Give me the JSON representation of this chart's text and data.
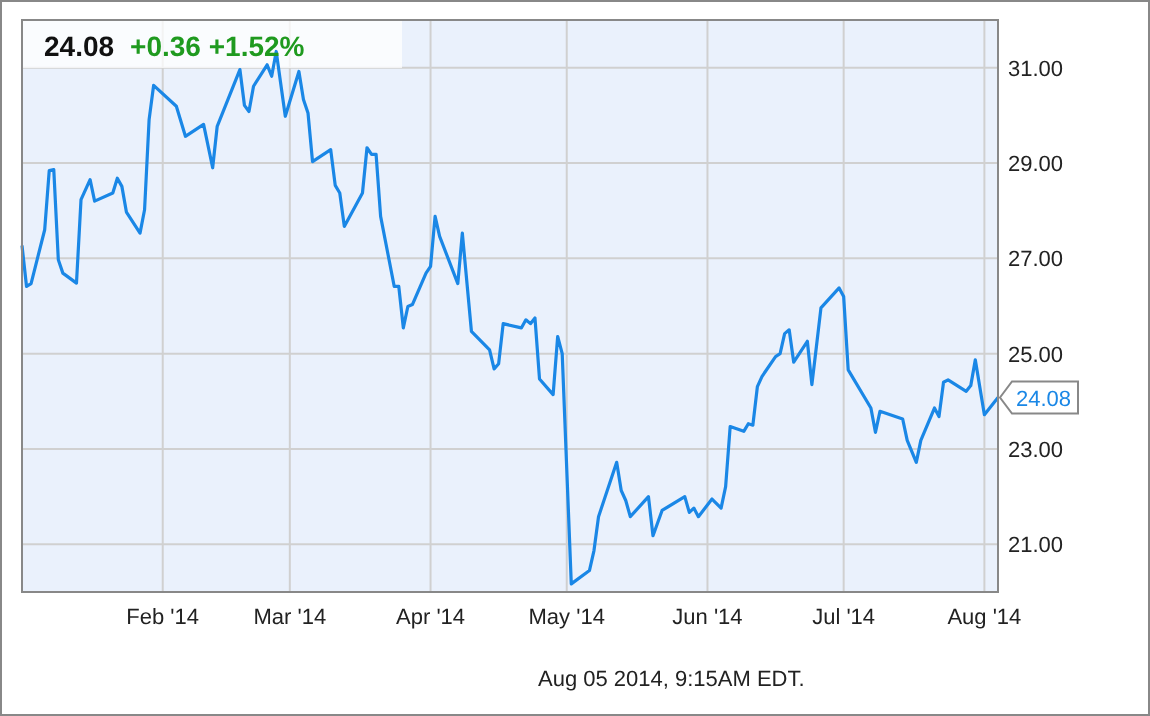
{
  "chart_data": {
    "type": "line",
    "title": "24.08",
    "subtitle": "+0.36 +1.52%",
    "annotations": [
      {
        "text": "24.08",
        "x": "2014-08-04",
        "y": 24.08
      },
      "Aug 05 2014, 9:15AM EDT."
    ],
    "xlim": [
      "2014-01-01",
      "2014-08-04"
    ],
    "xticks": [
      {
        "value": "2014-02-01",
        "label": "Feb '14"
      },
      {
        "value": "2014-03-01",
        "label": "Mar '14"
      },
      {
        "value": "2014-04-01",
        "label": "Apr '14"
      },
      {
        "value": "2014-05-01",
        "label": "May '14"
      },
      {
        "value": "2014-06-01",
        "label": "Jun '14"
      },
      {
        "value": "2014-07-01",
        "label": "Jul '14"
      },
      {
        "value": "2014-08-01",
        "label": "Aug '14"
      }
    ],
    "ylim": [
      20,
      32
    ],
    "yticks": [
      {
        "value": 21,
        "label": "21.00"
      },
      {
        "value": 23,
        "label": "23.00"
      },
      {
        "value": 25,
        "label": "25.00"
      },
      {
        "value": 27,
        "label": "27.00"
      },
      {
        "value": 29,
        "label": "29.00"
      },
      {
        "value": 31,
        "label": "31.00"
      }
    ],
    "grid": true,
    "marker": "none",
    "line_style": "solid",
    "x": [
      "2014-01-01",
      "2014-01-02",
      "2014-01-03",
      "2014-01-06",
      "2014-01-07",
      "2014-01-08",
      "2014-01-09",
      "2014-01-10",
      "2014-01-13",
      "2014-01-14",
      "2014-01-16",
      "2014-01-17",
      "2014-01-21",
      "2014-01-22",
      "2014-01-23",
      "2014-01-24",
      "2014-01-27",
      "2014-01-28",
      "2014-01-29",
      "2014-01-30",
      "2014-02-04",
      "2014-02-06",
      "2014-02-10",
      "2014-02-12",
      "2014-02-13",
      "2014-02-18",
      "2014-02-19",
      "2014-02-20",
      "2014-02-21",
      "2014-02-24",
      "2014-02-25",
      "2014-02-26",
      "2014-02-28",
      "2014-03-03",
      "2014-03-04",
      "2014-03-05",
      "2014-03-06",
      "2014-03-10",
      "2014-03-11",
      "2014-03-12",
      "2014-03-13",
      "2014-03-17",
      "2014-03-18",
      "2014-03-19",
      "2014-03-20",
      "2014-03-21",
      "2014-03-24",
      "2014-03-25",
      "2014-03-26",
      "2014-03-27",
      "2014-03-28",
      "2014-03-31",
      "2014-04-01",
      "2014-04-02",
      "2014-04-03",
      "2014-04-07",
      "2014-04-08",
      "2014-04-10",
      "2014-04-14",
      "2014-04-15",
      "2014-04-16",
      "2014-04-17",
      "2014-04-21",
      "2014-04-22",
      "2014-04-23",
      "2014-04-24",
      "2014-04-25",
      "2014-04-28",
      "2014-04-29",
      "2014-04-30",
      "2014-05-02",
      "2014-05-06",
      "2014-05-07",
      "2014-05-08",
      "2014-05-12",
      "2014-05-13",
      "2014-05-14",
      "2014-05-15",
      "2014-05-19",
      "2014-05-20",
      "2014-05-22",
      "2014-05-27",
      "2014-05-28",
      "2014-05-29",
      "2014-05-30",
      "2014-06-02",
      "2014-06-04",
      "2014-06-05",
      "2014-06-06",
      "2014-06-09",
      "2014-06-10",
      "2014-06-11",
      "2014-06-12",
      "2014-06-13",
      "2014-06-16",
      "2014-06-17",
      "2014-06-18",
      "2014-06-19",
      "2014-06-20",
      "2014-06-23",
      "2014-06-24",
      "2014-06-25",
      "2014-06-26",
      "2014-06-30",
      "2014-07-01",
      "2014-07-02",
      "2014-07-07",
      "2014-07-08",
      "2014-07-09",
      "2014-07-14",
      "2014-07-15",
      "2014-07-17",
      "2014-07-18",
      "2014-07-21",
      "2014-07-22",
      "2014-07-23",
      "2014-07-24",
      "2014-07-28",
      "2014-07-29",
      "2014-07-30",
      "2014-08-01",
      "2014-08-04"
    ],
    "series": [
      {
        "color": "#1a87e6",
        "values": [
          27.27,
          26.41,
          26.47,
          27.6,
          28.84,
          28.86,
          26.97,
          26.69,
          26.48,
          28.23,
          28.65,
          28.2,
          28.37,
          28.68,
          28.51,
          27.97,
          27.53,
          28.02,
          29.91,
          30.63,
          30.19,
          29.56,
          29.81,
          28.9,
          29.77,
          30.96,
          30.21,
          30.08,
          30.61,
          31.06,
          30.82,
          31.34,
          29.98,
          30.92,
          30.33,
          30.05,
          29.03,
          29.28,
          28.53,
          28.37,
          27.67,
          28.37,
          29.32,
          29.18,
          29.18,
          27.88,
          26.41,
          26.41,
          25.54,
          25.99,
          26.03,
          26.69,
          26.83,
          27.88,
          27.46,
          26.47,
          27.53,
          25.47,
          25.08,
          24.68,
          24.79,
          25.63,
          25.54,
          25.71,
          25.63,
          25.75,
          24.47,
          24.14,
          25.36,
          25.0,
          20.17,
          20.45,
          20.87,
          21.58,
          22.72,
          22.13,
          21.92,
          21.58,
          22.0,
          21.18,
          21.71,
          22.0,
          21.67,
          21.76,
          21.58,
          21.95,
          21.76,
          22.21,
          23.47,
          23.37,
          23.53,
          23.5,
          24.31,
          24.52,
          24.94,
          25.0,
          25.42,
          25.5,
          24.82,
          25.26,
          24.35,
          25.15,
          25.96,
          26.38,
          26.2,
          24.66,
          23.86,
          23.35,
          23.79,
          23.63,
          23.18,
          22.72,
          23.18,
          23.86,
          23.68,
          24.4,
          24.45,
          24.21,
          24.33,
          24.87,
          23.72,
          24.08
        ]
      }
    ]
  }
}
